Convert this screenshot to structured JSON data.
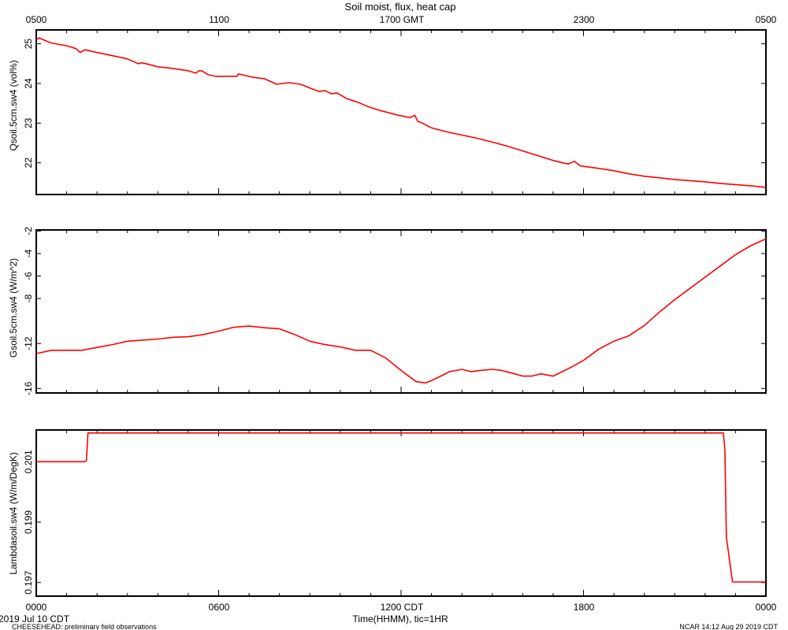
{
  "header": {
    "title": "Soil moist, flux, heat cap"
  },
  "top_axis": {
    "tick_labels": [
      "0500",
      "1100",
      "1700 GMT",
      "2300",
      "0500"
    ]
  },
  "bottom_axis": {
    "tick_labels": [
      "0000",
      "0600",
      "1200 CDT",
      "1800",
      "0000"
    ],
    "xlabel": "Time(HHMM), tic=1HR"
  },
  "footer": {
    "date_label": "2019 Jul 10 CDT",
    "project_label": "CHEESEHEAD: preliminary field observations",
    "stamp": "NCAR 14:12 Aug 29 2019 CDT"
  },
  "colors": {
    "series": "#ff0000",
    "axis": "#000000"
  },
  "chart_data": [
    {
      "type": "line",
      "ylabel": "Qsoil.5cm.sw4 (vol%)",
      "xlim": [
        0,
        24
      ],
      "ylim": [
        21.2,
        25.35
      ],
      "yticks": [
        22,
        23,
        24,
        25
      ],
      "ytick_labels": [
        "22",
        "23",
        "24",
        "25"
      ],
      "x": [
        0,
        0.1,
        0.3,
        0.5,
        1,
        1.3,
        1.45,
        1.6,
        2,
        2.5,
        3,
        3.35,
        3.5,
        4,
        4.5,
        5,
        5.25,
        5.35,
        5.45,
        5.65,
        5.9,
        6,
        6.6,
        6.65,
        7.1,
        7.5,
        7.8,
        7.9,
        8.3,
        8.7,
        8.95,
        9.3,
        9.5,
        9.7,
        9.9,
        10.2,
        10.6,
        10.9,
        11.3,
        11.5,
        11.9,
        12.3,
        12.45,
        12.55,
        12.7,
        13,
        13.5,
        14,
        14.5,
        15,
        15.5,
        16,
        16.5,
        17,
        17.3,
        17.5,
        17.7,
        17.9,
        18.5,
        19,
        19.5,
        20,
        20.5,
        21,
        21.5,
        22,
        22.5,
        23,
        23.5,
        24
      ],
      "series": [
        {
          "values": [
            25.1,
            25.15,
            25.08,
            25.02,
            24.95,
            24.88,
            24.78,
            24.85,
            24.78,
            24.7,
            24.62,
            24.5,
            24.52,
            24.42,
            24.38,
            24.32,
            24.26,
            24.32,
            24.32,
            24.22,
            24.18,
            24.18,
            24.18,
            24.24,
            24.16,
            24.12,
            24.02,
            23.98,
            24.02,
            23.98,
            23.9,
            23.8,
            23.82,
            23.74,
            23.76,
            23.62,
            23.52,
            23.42,
            23.32,
            23.28,
            23.2,
            23.14,
            23.2,
            23.04,
            23.0,
            22.88,
            22.78,
            22.7,
            22.62,
            22.52,
            22.42,
            22.3,
            22.18,
            22.06,
            22.0,
            21.97,
            22.04,
            21.92,
            21.86,
            21.8,
            21.72,
            21.66,
            21.62,
            21.58,
            21.55,
            21.52,
            21.48,
            21.45,
            21.42,
            21.38
          ]
        }
      ]
    },
    {
      "type": "line",
      "ylabel": "Gsoil.5cm.sw4 (W/m^2)",
      "xlim": [
        0,
        24
      ],
      "ylim": [
        -16.4,
        -1.9
      ],
      "yticks": [
        -2,
        -4,
        -6,
        -8,
        -12,
        -16
      ],
      "ytick_labels": [
        "-2",
        "-4",
        "-6",
        "-8",
        "-12",
        "-16"
      ],
      "x": [
        0,
        0.5,
        1,
        1.5,
        2,
        2.5,
        3,
        3.5,
        4,
        4.5,
        5,
        5.5,
        6,
        6.5,
        7,
        7.5,
        8,
        8.5,
        9,
        9.5,
        10,
        10.5,
        11,
        11.5,
        12,
        12.2,
        12.5,
        12.8,
        13,
        13.3,
        13.6,
        14,
        14.3,
        14.6,
        15,
        15.3,
        15.6,
        16,
        16.3,
        16.6,
        16.8,
        17,
        17.3,
        17.6,
        18,
        18.5,
        19,
        19.5,
        20,
        20.5,
        21,
        21.5,
        22,
        22.5,
        23,
        23.5,
        24
      ],
      "series": [
        {
          "values": [
            -12.9,
            -12.6,
            -12.6,
            -12.6,
            -12.35,
            -12.1,
            -11.8,
            -11.7,
            -11.6,
            -11.45,
            -11.4,
            -11.2,
            -10.9,
            -10.55,
            -10.45,
            -10.6,
            -10.7,
            -11.2,
            -11.8,
            -12.1,
            -12.3,
            -12.6,
            -12.6,
            -13.3,
            -14.4,
            -14.8,
            -15.4,
            -15.5,
            -15.3,
            -14.9,
            -14.5,
            -14.3,
            -14.5,
            -14.4,
            -14.3,
            -14.4,
            -14.6,
            -14.9,
            -14.9,
            -14.7,
            -14.8,
            -14.9,
            -14.5,
            -14.1,
            -13.5,
            -12.5,
            -11.8,
            -11.3,
            -10.4,
            -9.2,
            -8.1,
            -7.1,
            -6.1,
            -5.1,
            -4.1,
            -3.3,
            -2.7
          ]
        }
      ]
    },
    {
      "type": "line",
      "ylabel": "Lambdasoil.sw4 (W/m/DegK)",
      "xlim": [
        0,
        24
      ],
      "ylim": [
        0.19655,
        0.20205
      ],
      "yticks": [
        0.201,
        0.199,
        0.197
      ],
      "ytick_labels": [
        "0.201",
        "0.199",
        "0.197"
      ],
      "x": [
        0,
        1.6,
        1.65,
        1.7,
        22.6,
        22.65,
        22.7,
        22.9,
        23,
        24
      ],
      "series": [
        {
          "values": [
            0.201,
            0.201,
            0.20104,
            0.20195,
            0.20195,
            0.2014,
            0.1985,
            0.19702,
            0.19702,
            0.19702
          ]
        }
      ]
    }
  ]
}
